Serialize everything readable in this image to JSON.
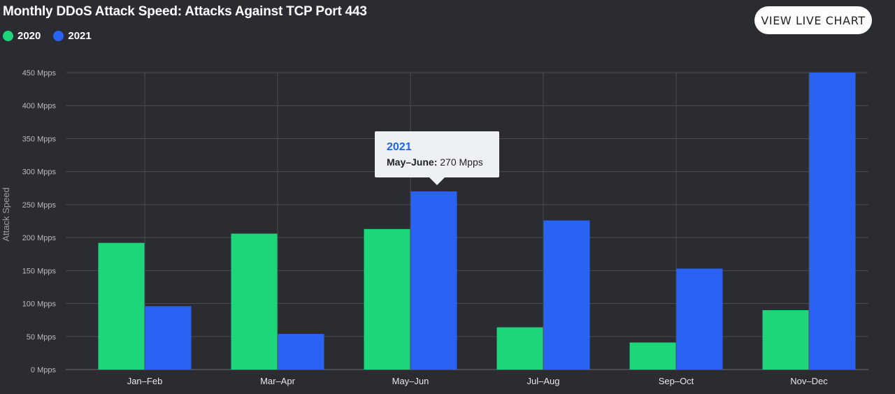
{
  "header": {
    "title": "Monthly DDoS Attack Speed: Attacks Against TCP Port 443",
    "live_button": "VIEW LIVE CHART"
  },
  "legend": [
    {
      "label": "2020",
      "color": "#1ed67a"
    },
    {
      "label": "2021",
      "color": "#2a62f3"
    }
  ],
  "tooltip": {
    "series": "2021",
    "label": "May–June:",
    "value": "270 Mpps"
  },
  "chart_data": {
    "type": "bar",
    "title": "Monthly DDoS Attack Speed: Attacks Against TCP Port 443",
    "xlabel": "",
    "ylabel": "Attack Speed",
    "categories": [
      "Jan–Feb",
      "Mar–Apr",
      "May–Jun",
      "Jul–Aug",
      "Sep–Oct",
      "Nov–Dec"
    ],
    "series": [
      {
        "name": "2020",
        "color": "#1ed67a",
        "values": [
          192,
          206,
          213,
          64,
          41,
          90
        ]
      },
      {
        "name": "2021",
        "color": "#2a62f3",
        "values": [
          96,
          54,
          270,
          226,
          153,
          450
        ]
      }
    ],
    "ylim": [
      0,
      450
    ],
    "yticks": [
      0,
      50,
      100,
      150,
      200,
      250,
      300,
      350,
      400,
      450
    ],
    "ytick_labels": [
      "0 Mpps",
      "50 Mpps",
      "100 Mpps",
      "150 Mpps",
      "200 Mpps",
      "250 Mpps",
      "300 Mpps",
      "350 Mpps",
      "400 Mpps",
      "450 Mpps"
    ],
    "grid": true,
    "legend_position": "top-left"
  }
}
